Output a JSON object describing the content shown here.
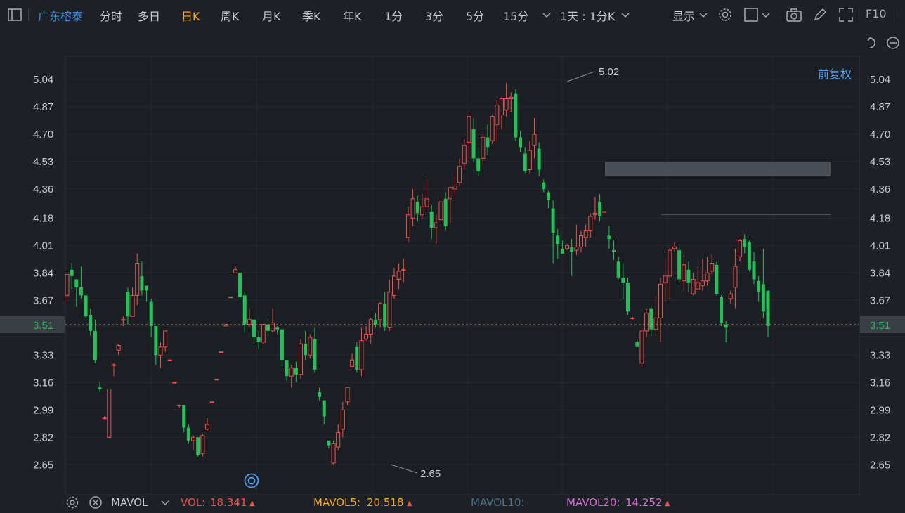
{
  "toolbar": {
    "stock_name": "广东榕泰",
    "tabs": [
      "分时",
      "多日",
      "日K",
      "周K",
      "月K",
      "季K",
      "年K",
      "1分",
      "3分",
      "5分",
      "15分"
    ],
    "active_tab": "日K",
    "period_select": "1天 : 1分K",
    "display_label": "显示",
    "f10_label": "F10"
  },
  "adjust_label": "前复权",
  "price_axis": {
    "ticks": [
      "5.04",
      "4.87",
      "4.70",
      "4.53",
      "4.36",
      "4.18",
      "4.01",
      "3.84",
      "3.67",
      "3.51",
      "3.33",
      "3.16",
      "2.99",
      "2.82",
      "2.65"
    ],
    "current_price": "3.51",
    "high_label": "5.02",
    "low_label": "2.65"
  },
  "colors": {
    "up": "#f0524f",
    "down": "#25c05a",
    "active_tab": "#f5a623",
    "stock_name": "#3f8ee0",
    "vol": "#f0524f",
    "mavol5": "#f5a623",
    "mavol10": "#4a6f8a",
    "mavol20": "#d46fd6"
  },
  "indicator": {
    "name": "MAVOL",
    "vol_label": "VOL:",
    "vol_value": "18.341",
    "mavol5_label": "MAVOL5:",
    "mavol5_value": "20.518",
    "mavol10_label": "MAVOL10:",
    "mavol20_label": "MAVOL20:",
    "mavol20_value": "14.252"
  },
  "chart_data": {
    "type": "candlestick",
    "ylim": [
      2.6,
      5.1
    ],
    "candles": [
      [
        3.7,
        3.83,
        3.66,
        3.83
      ],
      [
        3.86,
        3.82,
        3.9,
        3.74
      ],
      [
        3.8,
        3.75,
        3.8,
        3.63
      ],
      [
        3.75,
        3.7,
        3.88,
        3.68
      ],
      [
        3.7,
        3.57,
        3.7,
        3.56
      ],
      [
        3.58,
        3.48,
        3.62,
        3.45
      ],
      [
        3.48,
        3.3,
        3.55,
        3.28
      ],
      [
        3.13,
        3.12,
        3.16,
        3.1
      ],
      [
        2.94,
        2.94,
        2.95,
        2.94
      ],
      [
        2.82,
        3.12,
        3.12,
        2.82
      ],
      [
        3.27,
        3.27,
        3.28,
        3.2
      ],
      [
        3.36,
        3.39,
        3.4,
        3.33
      ],
      [
        3.55,
        3.55,
        3.57,
        3.51
      ],
      [
        3.72,
        3.57,
        3.75,
        3.52
      ],
      [
        3.57,
        3.7,
        3.75,
        3.57
      ],
      [
        3.7,
        3.9,
        3.96,
        3.64
      ],
      [
        3.82,
        3.73,
        3.91,
        3.7
      ],
      [
        3.76,
        3.73,
        3.76,
        3.66
      ],
      [
        3.66,
        3.51,
        3.68,
        3.44
      ],
      [
        3.51,
        3.33,
        3.51,
        3.27
      ],
      [
        3.33,
        3.38,
        3.41,
        3.25
      ],
      [
        3.38,
        3.48,
        3.48,
        3.35
      ],
      [
        3.3,
        3.3,
        3.3,
        3.3
      ],
      [
        3.16,
        3.16,
        3.16,
        3.16
      ],
      [
        3.02,
        3.02,
        3.02,
        3.0
      ],
      [
        3.02,
        2.88,
        3.02,
        2.85
      ],
      [
        2.88,
        2.8,
        2.9,
        2.78
      ],
      [
        2.8,
        2.82,
        2.83,
        2.74
      ],
      [
        2.82,
        2.71,
        2.82,
        2.7
      ],
      [
        2.72,
        2.83,
        2.84,
        2.7
      ],
      [
        2.87,
        2.9,
        2.94,
        2.86
      ],
      [
        3.04,
        3.04,
        3.04,
        3.04
      ],
      [
        3.18,
        3.18,
        3.18,
        3.18
      ],
      [
        3.35,
        3.35,
        3.35,
        3.35
      ],
      [
        3.51,
        3.52,
        3.52,
        3.51
      ],
      [
        3.69,
        3.69,
        3.69,
        3.69
      ],
      [
        3.84,
        3.86,
        3.88,
        3.84
      ],
      [
        3.84,
        3.69,
        3.86,
        3.67
      ],
      [
        3.7,
        3.52,
        3.72,
        3.47
      ],
      [
        3.52,
        3.55,
        3.62,
        3.5
      ],
      [
        3.55,
        3.44,
        3.55,
        3.4
      ],
      [
        3.44,
        3.41,
        3.48,
        3.37
      ],
      [
        3.41,
        3.52,
        3.52,
        3.4
      ],
      [
        3.52,
        3.48,
        3.56,
        3.45
      ],
      [
        3.48,
        3.53,
        3.62,
        3.47
      ],
      [
        3.5,
        3.49,
        3.51,
        3.46
      ],
      [
        3.49,
        3.3,
        3.5,
        3.26
      ],
      [
        3.3,
        3.2,
        3.3,
        3.17
      ],
      [
        3.2,
        3.25,
        3.27,
        3.13
      ],
      [
        3.25,
        3.21,
        3.29,
        3.16
      ],
      [
        3.21,
        3.4,
        3.43,
        3.18
      ],
      [
        3.4,
        3.33,
        3.48,
        3.3
      ],
      [
        3.33,
        3.44,
        3.46,
        3.31
      ],
      [
        3.43,
        3.24,
        3.5,
        3.22
      ],
      [
        3.1,
        3.07,
        3.13,
        3.05
      ],
      [
        3.05,
        2.95,
        3.05,
        2.9
      ],
      [
        2.8,
        2.77,
        2.8,
        2.75
      ],
      [
        2.66,
        2.78,
        2.8,
        2.65
      ],
      [
        2.76,
        2.85,
        2.9,
        2.74
      ],
      [
        2.87,
        2.99,
        3.04,
        2.82
      ],
      [
        3.04,
        3.13,
        3.13,
        3.02
      ],
      [
        3.26,
        3.3,
        3.34,
        3.26
      ],
      [
        3.38,
        3.24,
        3.41,
        3.22
      ],
      [
        3.24,
        3.42,
        3.5,
        3.2
      ],
      [
        3.43,
        3.46,
        3.51,
        3.42
      ],
      [
        3.46,
        3.55,
        3.56,
        3.4
      ],
      [
        3.55,
        3.52,
        3.59,
        3.5
      ],
      [
        3.55,
        3.65,
        3.66,
        3.5
      ],
      [
        3.65,
        3.5,
        3.72,
        3.48
      ],
      [
        3.5,
        3.72,
        3.8,
        3.48
      ],
      [
        3.7,
        3.82,
        3.87,
        3.68
      ],
      [
        3.8,
        3.85,
        3.9,
        3.74
      ],
      [
        3.86,
        3.86,
        3.93,
        3.78
      ],
      [
        4.06,
        4.2,
        4.25,
        4.03
      ],
      [
        4.18,
        4.3,
        4.36,
        4.13
      ],
      [
        4.28,
        4.21,
        4.32,
        4.16
      ],
      [
        4.2,
        4.25,
        4.33,
        4.18
      ],
      [
        4.25,
        4.3,
        4.42,
        4.23
      ],
      [
        4.22,
        4.12,
        4.26,
        4.05
      ],
      [
        4.12,
        4.15,
        4.2,
        4.02
      ],
      [
        4.17,
        4.28,
        4.31,
        4.16
      ],
      [
        4.3,
        4.13,
        4.34,
        4.1
      ],
      [
        4.3,
        4.37,
        4.37,
        4.15
      ],
      [
        4.36,
        4.38,
        4.45,
        4.32
      ],
      [
        4.4,
        4.5,
        4.55,
        4.38
      ],
      [
        4.52,
        4.63,
        4.67,
        4.48
      ],
      [
        4.65,
        4.81,
        4.84,
        4.55
      ],
      [
        4.73,
        4.55,
        4.8,
        4.53
      ],
      [
        4.55,
        4.47,
        4.62,
        4.44
      ],
      [
        4.55,
        4.68,
        4.7,
        4.52
      ],
      [
        4.68,
        4.62,
        4.76,
        4.57
      ],
      [
        4.66,
        4.81,
        4.82,
        4.64
      ],
      [
        4.76,
        4.88,
        4.91,
        4.66
      ],
      [
        4.82,
        4.92,
        4.93,
        4.73
      ],
      [
        4.85,
        4.92,
        5.02,
        4.81
      ],
      [
        4.92,
        4.93,
        4.96,
        4.84
      ],
      [
        4.95,
        4.68,
        4.98,
        4.66
      ],
      [
        4.68,
        4.62,
        4.72,
        4.59
      ],
      [
        4.58,
        4.47,
        4.62,
        4.46
      ],
      [
        4.48,
        4.6,
        4.66,
        4.46
      ],
      [
        4.63,
        4.7,
        4.8,
        4.55
      ],
      [
        4.61,
        4.48,
        4.65,
        4.44
      ],
      [
        4.4,
        4.36,
        4.42,
        4.34
      ],
      [
        4.34,
        4.29,
        4.35,
        4.24
      ],
      [
        4.24,
        4.09,
        4.29,
        3.9
      ],
      [
        4.07,
        4.02,
        4.11,
        3.93
      ],
      [
        3.99,
        3.96,
        4.04,
        3.96
      ],
      [
        3.99,
        4.01,
        4.02,
        3.98
      ],
      [
        4.0,
        3.97,
        4.05,
        3.82
      ],
      [
        3.98,
        4.0,
        4.14,
        3.95
      ],
      [
        4.0,
        4.07,
        4.1,
        3.97
      ],
      [
        4.06,
        4.1,
        4.14,
        4.0
      ],
      [
        4.1,
        4.19,
        4.21,
        4.06
      ],
      [
        4.2,
        4.21,
        4.31,
        4.17
      ],
      [
        4.28,
        4.19,
        4.33,
        4.16
      ],
      [
        4.22,
        4.22,
        4.22,
        4.22
      ],
      [
        4.07,
        4.05,
        4.13,
        3.99
      ],
      [
        3.98,
        3.97,
        4.04,
        3.92
      ],
      [
        3.91,
        3.81,
        3.94,
        3.8
      ],
      [
        3.81,
        3.78,
        3.9,
        3.68
      ],
      [
        3.78,
        3.6,
        3.81,
        3.58
      ],
      [
        3.56,
        3.56,
        3.57,
        3.55
      ],
      [
        3.41,
        3.38,
        3.43,
        3.38
      ],
      [
        3.28,
        3.48,
        3.5,
        3.26
      ],
      [
        3.48,
        3.59,
        3.62,
        3.44
      ],
      [
        3.62,
        3.49,
        3.64,
        3.45
      ],
      [
        3.49,
        3.56,
        3.69,
        3.45
      ],
      [
        3.56,
        3.77,
        3.81,
        3.41
      ],
      [
        3.78,
        3.82,
        3.93,
        3.66
      ],
      [
        3.82,
        3.98,
        4.01,
        3.68
      ],
      [
        3.99,
        4.0,
        4.03,
        3.97
      ],
      [
        3.98,
        3.8,
        4.02,
        3.78
      ],
      [
        3.79,
        3.89,
        3.95,
        3.73
      ],
      [
        3.86,
        3.78,
        3.91,
        3.72
      ],
      [
        3.71,
        3.8,
        3.84,
        3.7
      ],
      [
        3.74,
        3.78,
        3.88,
        3.75
      ],
      [
        3.76,
        3.79,
        3.93,
        3.73
      ],
      [
        3.79,
        3.84,
        3.94,
        3.76
      ],
      [
        3.85,
        3.9,
        3.96,
        3.83
      ],
      [
        3.89,
        3.71,
        3.91,
        3.7
      ],
      [
        3.69,
        3.53,
        3.7,
        3.51
      ],
      [
        3.52,
        3.5,
        3.54,
        3.41
      ],
      [
        3.68,
        3.71,
        3.73,
        3.65
      ],
      [
        3.75,
        3.88,
        3.99,
        3.62
      ],
      [
        3.94,
        4.04,
        4.05,
        3.91
      ],
      [
        4.05,
        4.0,
        4.08,
        3.96
      ],
      [
        4.03,
        3.86,
        4.04,
        3.85
      ],
      [
        3.91,
        3.8,
        3.97,
        3.77
      ],
      [
        3.79,
        3.72,
        3.82,
        3.66
      ],
      [
        3.77,
        3.6,
        3.99,
        3.56
      ],
      [
        3.73,
        3.51,
        3.73,
        3.44
      ]
    ]
  }
}
